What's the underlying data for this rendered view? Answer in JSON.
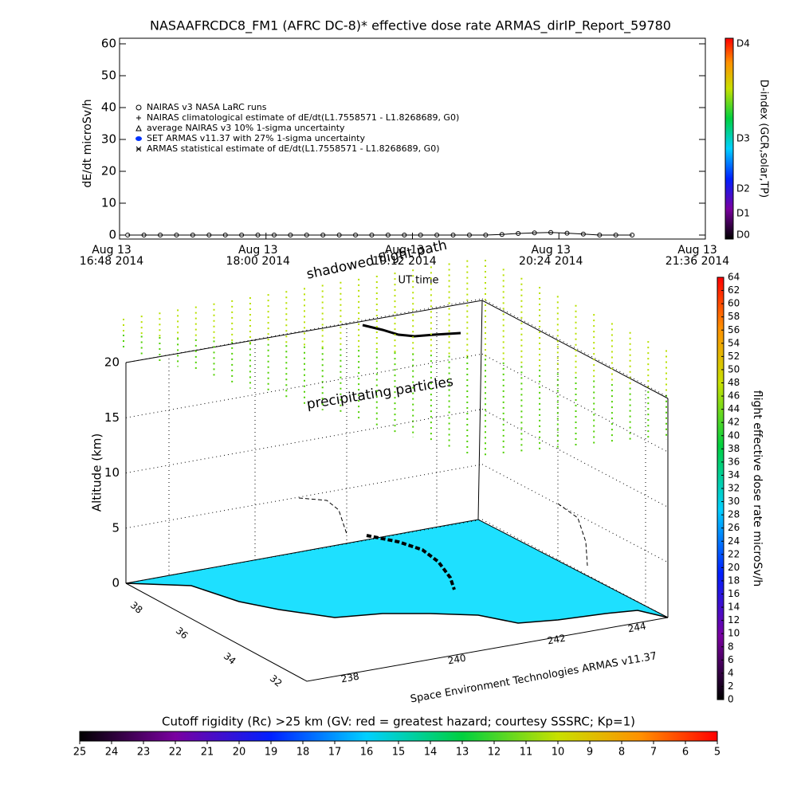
{
  "chart_data": [
    {
      "type": "line",
      "title": "NASAAFRCDC8_FM1 (AFRC DC-8)* effective dose rate ARMAS_dirIP_Report_59780",
      "y_label": "dE/dt microSv/h",
      "x_label": "UT time",
      "xlim": [
        "16:48",
        "21:36"
      ],
      "xticks": [
        {
          "value": "16:48",
          "label": "Aug 13\n16:48 2014"
        },
        {
          "value": "18:00",
          "label": "Aug 13\n18:00 2014"
        },
        {
          "value": "19:12",
          "label": "Aug 13\n19:12 2014"
        },
        {
          "value": "20:24",
          "label": "Aug 13\n20:24 2014"
        },
        {
          "value": "21:36",
          "label": "Aug 13\n21:36 2014"
        }
      ],
      "ylim": [
        -1.25,
        61.75
      ],
      "yticks": [
        0,
        10,
        20,
        30,
        40,
        50,
        60
      ],
      "series": [
        {
          "name": "NAIRAS v3 NASA LaRC runs",
          "color": "#000000",
          "x": [
            "16:52",
            "17:00",
            "17:08",
            "17:16",
            "17:24",
            "17:32",
            "17:40",
            "17:48",
            "17:56",
            "18:04",
            "18:12",
            "18:20",
            "18:28",
            "18:36",
            "18:44",
            "18:52",
            "19:00",
            "19:08",
            "19:16",
            "19:24",
            "19:32",
            "19:40",
            "19:48",
            "19:56",
            "20:04",
            "20:12",
            "20:20",
            "20:28",
            "20:36",
            "20:44",
            "20:52",
            "21:00"
          ],
          "values": [
            0,
            0,
            0,
            0,
            0,
            0,
            0,
            0,
            0,
            0,
            0,
            0,
            0,
            0,
            0,
            0,
            0,
            0,
            0,
            0,
            0,
            0,
            0,
            0.2,
            0.5,
            0.7,
            0.8,
            0.6,
            0.3,
            0,
            0,
            0
          ]
        },
        {
          "name": "NAIRAS climatological estimate of dE/dt(L1.7558571 - L1.8268689, G0)",
          "color": "#000000",
          "x": [],
          "values": []
        },
        {
          "name": "average NAIRAS v3 10% 1-sigma uncertainty",
          "color": "#000000",
          "x": [],
          "values": []
        },
        {
          "name": "SET ARMAS v11.37 with 27% 1-sigma uncertainty",
          "color": "#0033ff",
          "x": [],
          "values": []
        },
        {
          "name": "ARMAS statistical estimate of dE/dt(L1.7558571 - L1.8268689, G0)",
          "color": "#000000",
          "x": [],
          "values": []
        }
      ],
      "colorbar": {
        "label": "D-index (GCR,solar,TP)",
        "ticks": [
          "D4",
          "D3",
          "D2",
          "D1",
          "D0"
        ]
      }
    },
    {
      "type": "surface3d",
      "annotations": [
        "shadowed flight path",
        "precipitating particles"
      ],
      "z_label": "Altitude (km)",
      "zlim": [
        0,
        20
      ],
      "zticks": [
        0,
        5,
        10,
        15,
        20
      ],
      "lat_ticks": [
        38,
        36,
        34,
        32
      ],
      "lon_ticks": [
        238,
        240,
        242,
        244
      ],
      "credit": "Space Environment Technologies ARMAS v11.37",
      "colorbar": {
        "label": "flight effective dose rate microSv/h",
        "lim": [
          0,
          64
        ],
        "ticks": [
          0,
          2,
          4,
          6,
          8,
          10,
          12,
          14,
          16,
          18,
          20,
          22,
          24,
          26,
          28,
          30,
          32,
          34,
          36,
          38,
          40,
          42,
          44,
          46,
          48,
          50,
          52,
          54,
          56,
          58,
          60,
          62,
          64
        ]
      },
      "cutoff_colorbar": {
        "title": "Cutoff rigidity (Rc) >25 km (GV: red = greatest hazard; courtesy SSSRC; Kp=1)",
        "lim": [
          25,
          5
        ],
        "ticks": [
          25,
          24,
          23,
          22,
          21,
          20,
          19,
          18,
          17,
          16,
          15,
          14,
          13,
          12,
          11,
          10,
          9,
          8,
          7,
          6,
          5
        ]
      }
    }
  ]
}
